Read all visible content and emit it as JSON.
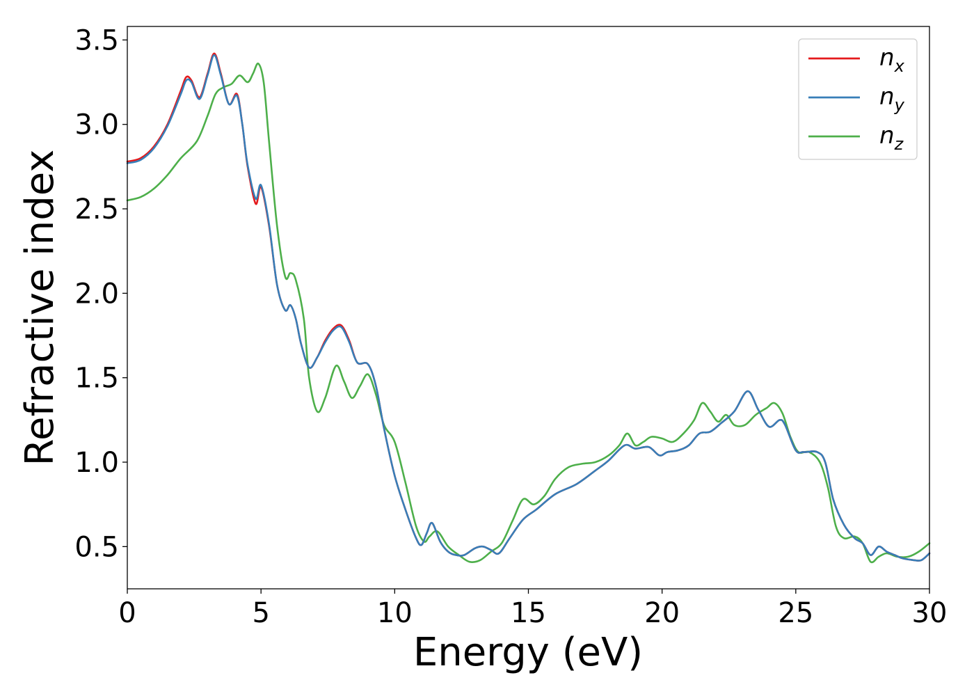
{
  "chart_data": {
    "type": "line",
    "xlabel": "Energy (eV)",
    "ylabel": "Refractive index",
    "xlim": [
      0,
      30
    ],
    "ylim": [
      0.25,
      3.58
    ],
    "xticks": [
      0,
      5,
      10,
      15,
      20,
      25,
      30
    ],
    "xtick_labels": [
      "0",
      "5",
      "10",
      "15",
      "20",
      "25",
      "30"
    ],
    "yticks": [
      0.5,
      1.0,
      1.5,
      2.0,
      2.5,
      3.0,
      3.5
    ],
    "ytick_labels": [
      "0.5",
      "1.0",
      "1.5",
      "2.0",
      "2.5",
      "3.0",
      "3.5"
    ],
    "grid": false,
    "legend_position": "top-right",
    "series": [
      {
        "name": "n",
        "subscript": "x",
        "color": "#e41a1c",
        "x": [
          0,
          0.5,
          1.0,
          1.5,
          2.0,
          2.2,
          2.4,
          2.7,
          3.0,
          3.25,
          3.5,
          3.8,
          4.1,
          4.3,
          4.5,
          4.8,
          5.0,
          5.3,
          5.6,
          5.9,
          6.1,
          6.3,
          6.5,
          6.8,
          7.1,
          7.4,
          7.7,
          8.0,
          8.3,
          8.6,
          9.0,
          9.3,
          9.6,
          10.0,
          10.4,
          10.8,
          11.0,
          11.2,
          11.4,
          11.7,
          12.0,
          12.3,
          12.6,
          13.0,
          13.3,
          13.6,
          13.9,
          14.3,
          14.8,
          15.3,
          16.0,
          16.8,
          17.5,
          18.0,
          18.6,
          19.0,
          19.5,
          19.9,
          20.2,
          20.6,
          21.0,
          21.4,
          21.8,
          22.2,
          22.7,
          23.2,
          23.6,
          24.0,
          24.4,
          24.6,
          25.0,
          25.3,
          25.8,
          26.1,
          26.4,
          26.8,
          27.2,
          27.5,
          27.8,
          28.1,
          28.4,
          28.7,
          29.0,
          29.4,
          29.7,
          30.0
        ],
        "values": [
          2.78,
          2.8,
          2.87,
          3.0,
          3.2,
          3.28,
          3.26,
          3.16,
          3.3,
          3.42,
          3.3,
          3.12,
          3.18,
          3.0,
          2.75,
          2.53,
          2.63,
          2.4,
          2.05,
          1.9,
          1.93,
          1.85,
          1.7,
          1.56,
          1.62,
          1.72,
          1.79,
          1.81,
          1.72,
          1.59,
          1.58,
          1.45,
          1.2,
          0.92,
          0.72,
          0.55,
          0.51,
          0.58,
          0.64,
          0.53,
          0.47,
          0.45,
          0.45,
          0.49,
          0.5,
          0.48,
          0.46,
          0.55,
          0.66,
          0.72,
          0.81,
          0.87,
          0.95,
          1.01,
          1.1,
          1.08,
          1.09,
          1.04,
          1.06,
          1.07,
          1.1,
          1.17,
          1.18,
          1.23,
          1.3,
          1.42,
          1.31,
          1.21,
          1.25,
          1.22,
          1.07,
          1.06,
          1.06,
          1.0,
          0.78,
          0.63,
          0.55,
          0.52,
          0.45,
          0.5,
          0.47,
          0.45,
          0.43,
          0.42,
          0.42,
          0.46
        ]
      },
      {
        "name": "n",
        "subscript": "y",
        "color": "#377eb8",
        "x": [
          0,
          0.5,
          1.0,
          1.5,
          2.0,
          2.2,
          2.4,
          2.7,
          3.0,
          3.25,
          3.5,
          3.8,
          4.1,
          4.3,
          4.5,
          4.8,
          5.0,
          5.3,
          5.6,
          5.9,
          6.1,
          6.3,
          6.5,
          6.8,
          7.1,
          7.4,
          7.7,
          8.0,
          8.3,
          8.6,
          9.0,
          9.3,
          9.6,
          10.0,
          10.4,
          10.8,
          11.0,
          11.2,
          11.4,
          11.7,
          12.0,
          12.3,
          12.6,
          13.0,
          13.3,
          13.6,
          13.9,
          14.3,
          14.8,
          15.3,
          16.0,
          16.8,
          17.5,
          18.0,
          18.6,
          19.0,
          19.5,
          19.9,
          20.2,
          20.6,
          21.0,
          21.4,
          21.8,
          22.2,
          22.7,
          23.2,
          23.6,
          24.0,
          24.4,
          24.6,
          25.0,
          25.3,
          25.8,
          26.1,
          26.4,
          26.8,
          27.2,
          27.5,
          27.8,
          28.1,
          28.4,
          28.7,
          29.0,
          29.4,
          29.7,
          30.0
        ],
        "values": [
          2.77,
          2.79,
          2.86,
          2.99,
          3.18,
          3.26,
          3.25,
          3.15,
          3.29,
          3.41,
          3.29,
          3.12,
          3.17,
          3.0,
          2.76,
          2.56,
          2.64,
          2.41,
          2.05,
          1.9,
          1.93,
          1.85,
          1.7,
          1.56,
          1.62,
          1.71,
          1.78,
          1.8,
          1.71,
          1.59,
          1.58,
          1.45,
          1.2,
          0.92,
          0.72,
          0.55,
          0.51,
          0.58,
          0.64,
          0.53,
          0.47,
          0.45,
          0.45,
          0.49,
          0.5,
          0.48,
          0.46,
          0.55,
          0.66,
          0.72,
          0.81,
          0.87,
          0.95,
          1.01,
          1.1,
          1.08,
          1.09,
          1.04,
          1.06,
          1.07,
          1.1,
          1.17,
          1.18,
          1.23,
          1.3,
          1.42,
          1.31,
          1.21,
          1.25,
          1.22,
          1.07,
          1.06,
          1.06,
          1.0,
          0.78,
          0.63,
          0.55,
          0.52,
          0.45,
          0.5,
          0.47,
          0.45,
          0.43,
          0.42,
          0.42,
          0.46
        ]
      },
      {
        "name": "n",
        "subscript": "z",
        "color": "#4daf4a",
        "x": [
          0,
          0.5,
          1.0,
          1.5,
          2.0,
          2.6,
          3.0,
          3.3,
          3.6,
          3.9,
          4.2,
          4.5,
          4.7,
          4.9,
          5.1,
          5.3,
          5.6,
          5.9,
          6.1,
          6.3,
          6.6,
          6.8,
          7.1,
          7.4,
          7.8,
          8.1,
          8.4,
          8.7,
          9.0,
          9.3,
          9.6,
          10.0,
          10.4,
          10.8,
          11.1,
          11.3,
          11.6,
          12.0,
          12.4,
          12.8,
          13.2,
          13.6,
          14.0,
          14.4,
          14.8,
          15.2,
          15.6,
          16.0,
          16.5,
          17.0,
          17.5,
          18.0,
          18.4,
          18.7,
          19.0,
          19.3,
          19.6,
          20.0,
          20.4,
          20.8,
          21.2,
          21.5,
          21.8,
          22.1,
          22.4,
          22.7,
          23.1,
          23.5,
          23.9,
          24.2,
          24.5,
          24.8,
          25.1,
          25.5,
          25.9,
          26.2,
          26.5,
          26.8,
          27.2,
          27.5,
          27.8,
          28.1,
          28.4,
          28.8,
          29.2,
          29.6,
          30.0
        ],
        "values": [
          2.55,
          2.57,
          2.62,
          2.7,
          2.8,
          2.9,
          3.05,
          3.18,
          3.22,
          3.24,
          3.29,
          3.25,
          3.3,
          3.36,
          3.25,
          2.9,
          2.4,
          2.1,
          2.12,
          2.08,
          1.85,
          1.5,
          1.3,
          1.38,
          1.57,
          1.48,
          1.38,
          1.45,
          1.52,
          1.4,
          1.22,
          1.12,
          0.88,
          0.62,
          0.53,
          0.56,
          0.59,
          0.5,
          0.45,
          0.41,
          0.42,
          0.47,
          0.52,
          0.65,
          0.78,
          0.75,
          0.8,
          0.9,
          0.97,
          0.99,
          1.0,
          1.04,
          1.1,
          1.17,
          1.1,
          1.12,
          1.15,
          1.14,
          1.12,
          1.17,
          1.25,
          1.35,
          1.3,
          1.24,
          1.28,
          1.22,
          1.22,
          1.28,
          1.32,
          1.35,
          1.29,
          1.15,
          1.06,
          1.06,
          1.0,
          0.85,
          0.62,
          0.55,
          0.56,
          0.52,
          0.41,
          0.44,
          0.46,
          0.44,
          0.44,
          0.47,
          0.52
        ]
      }
    ]
  }
}
